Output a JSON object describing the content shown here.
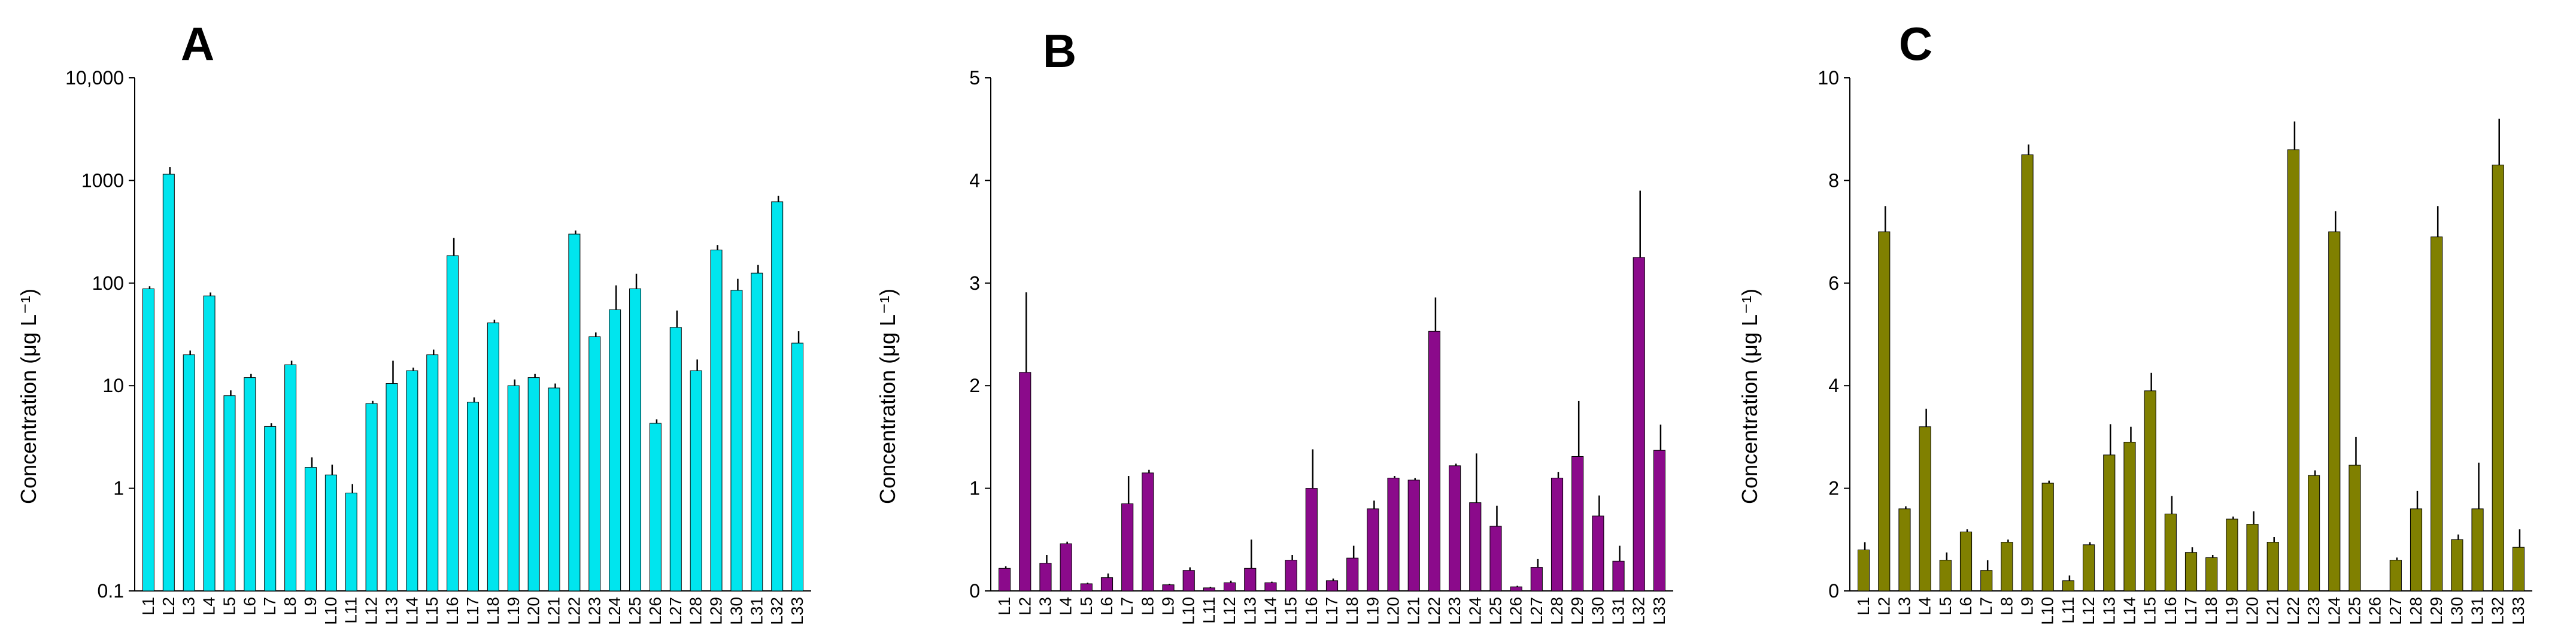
{
  "chart_data": [
    {
      "type": "bar",
      "panel_label": "A",
      "ylabel": "Concentration (μg L⁻¹)",
      "yscale": "log",
      "ylim": [
        0.1,
        10000
      ],
      "yticks": [
        0.1,
        1,
        10,
        100,
        1000,
        10000
      ],
      "ytick_labels": [
        "0.1",
        "1",
        "10",
        "100",
        "1000",
        "10,000"
      ],
      "grid": false,
      "error_bars": "upper",
      "bar_color": "#00e5ee",
      "categories": [
        "L1",
        "L2",
        "L3",
        "L4",
        "L5",
        "L6",
        "L7",
        "L8",
        "L9",
        "L10",
        "L11",
        "L12",
        "L13",
        "L14",
        "L15",
        "L16",
        "L17",
        "L18",
        "L19",
        "L20",
        "L21",
        "L22",
        "L23",
        "L24",
        "L25",
        "L26",
        "L27",
        "L28",
        "L29",
        "L30",
        "L31",
        "L32",
        "L33"
      ],
      "values": [
        88,
        1150,
        20,
        75,
        8,
        12,
        4,
        16,
        1.6,
        1.35,
        0.9,
        6.7,
        10.5,
        14,
        20,
        185,
        6.9,
        41,
        10,
        12,
        9.5,
        300,
        30,
        55,
        88,
        4.3,
        37,
        14,
        210,
        85,
        125,
        620,
        26
      ],
      "errors": [
        5,
        200,
        2,
        6,
        1,
        1,
        0.3,
        1.5,
        0.4,
        0.35,
        0.2,
        0.4,
        7,
        1,
        2.5,
        90,
        0.8,
        3,
        1.5,
        1,
        1,
        25,
        3,
        40,
        35,
        0.4,
        17,
        4,
        25,
        25,
        25,
        90,
        8
      ]
    },
    {
      "type": "bar",
      "panel_label": "B",
      "ylabel": "Concentration (μg L⁻¹)",
      "yscale": "linear",
      "ylim": [
        0,
        5
      ],
      "yticks": [
        0,
        1,
        2,
        3,
        4,
        5
      ],
      "ytick_labels": [
        "0",
        "1",
        "2",
        "3",
        "4",
        "5"
      ],
      "grid": false,
      "error_bars": "upper",
      "bar_color": "#8b0a8b",
      "categories": [
        "L1",
        "L2",
        "L3",
        "L4",
        "L5",
        "L6",
        "L7",
        "L8",
        "L9",
        "L10",
        "L11",
        "L12",
        "L13",
        "L14",
        "L15",
        "L16",
        "L17",
        "L18",
        "L19",
        "L20",
        "L21",
        "L22",
        "L23",
        "L24",
        "L25",
        "L26",
        "L27",
        "L28",
        "L29",
        "L30",
        "L31",
        "L32",
        "L33"
      ],
      "values": [
        0.22,
        2.13,
        0.27,
        0.46,
        0.07,
        0.13,
        0.85,
        1.15,
        0.06,
        0.2,
        0.03,
        0.08,
        0.22,
        0.08,
        0.3,
        1.0,
        0.1,
        0.32,
        0.8,
        1.1,
        1.08,
        2.53,
        1.22,
        0.86,
        0.63,
        0.04,
        0.23,
        1.1,
        1.31,
        0.73,
        0.29,
        3.25,
        1.37
      ],
      "errors": [
        0.02,
        0.78,
        0.08,
        0.02,
        0.01,
        0.04,
        0.27,
        0.03,
        0.01,
        0.03,
        0.01,
        0.02,
        0.28,
        0.01,
        0.05,
        0.38,
        0.02,
        0.12,
        0.08,
        0.02,
        0.02,
        0.33,
        0.02,
        0.48,
        0.2,
        0.01,
        0.08,
        0.06,
        0.54,
        0.2,
        0.15,
        0.65,
        0.25
      ]
    },
    {
      "type": "bar",
      "panel_label": "C",
      "ylabel": "Concentration (μg L⁻¹)",
      "yscale": "linear",
      "ylim": [
        0,
        10
      ],
      "yticks": [
        0,
        2,
        4,
        6,
        8,
        10
      ],
      "ytick_labels": [
        "0",
        "2",
        "4",
        "6",
        "8",
        "10"
      ],
      "grid": false,
      "error_bars": "upper",
      "bar_color": "#808000",
      "categories": [
        "L1",
        "L2",
        "L3",
        "L4",
        "L5",
        "L6",
        "L7",
        "L8",
        "L9",
        "L10",
        "L11",
        "L12",
        "L13",
        "L14",
        "L15",
        "L16",
        "L17",
        "L18",
        "L19",
        "L20",
        "L21",
        "L22",
        "L23",
        "L24",
        "L25",
        "L26",
        "L27",
        "L28",
        "L29",
        "L30",
        "L31",
        "L32",
        "L33"
      ],
      "values": [
        0.8,
        7.0,
        1.6,
        3.2,
        0.6,
        1.15,
        0.4,
        0.95,
        8.5,
        2.1,
        0.2,
        0.9,
        2.65,
        2.9,
        3.9,
        1.5,
        0.75,
        0.65,
        1.4,
        1.3,
        0.95,
        8.6,
        2.25,
        7.0,
        2.45,
        0.0,
        0.6,
        1.6,
        6.9,
        1.0,
        1.6,
        8.3,
        0.85
      ],
      "errors": [
        0.15,
        0.5,
        0.05,
        0.35,
        0.15,
        0.05,
        0.2,
        0.05,
        0.2,
        0.05,
        0.1,
        0.05,
        0.6,
        0.3,
        0.35,
        0.35,
        0.1,
        0.05,
        0.05,
        0.25,
        0.1,
        0.55,
        0.1,
        0.4,
        0.55,
        0.0,
        0.05,
        0.35,
        0.6,
        0.1,
        0.9,
        0.9,
        0.35
      ]
    }
  ]
}
